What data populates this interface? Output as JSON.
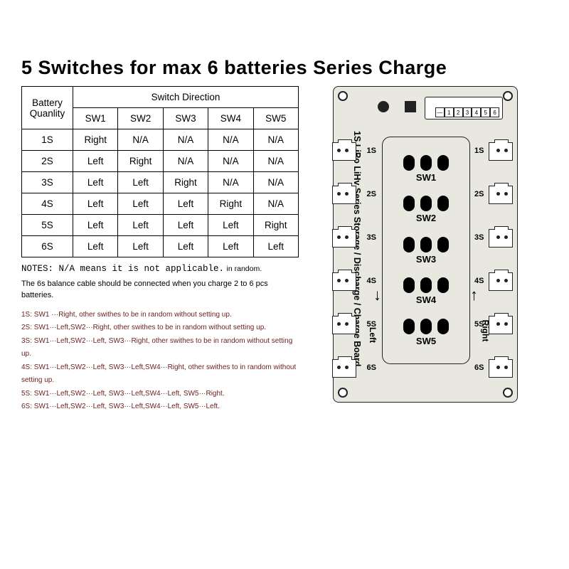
{
  "title": "5 Switches  for max 6  batteries Series Charge",
  "table": {
    "header_battery": "Battery Quanlity",
    "header_direction": "Switch Direction",
    "columns": [
      "SW1",
      "SW2",
      "SW3",
      "SW4",
      "SW5"
    ],
    "rows": [
      {
        "qty": "1S",
        "cells": [
          "Right",
          "N/A",
          "N/A",
          "N/A",
          "N/A"
        ]
      },
      {
        "qty": "2S",
        "cells": [
          "Left",
          "Right",
          "N/A",
          "N/A",
          "N/A"
        ]
      },
      {
        "qty": "3S",
        "cells": [
          "Left",
          "Left",
          "Right",
          "N/A",
          "N/A"
        ]
      },
      {
        "qty": "4S",
        "cells": [
          "Left",
          "Left",
          "Left",
          "Right",
          "N/A"
        ]
      },
      {
        "qty": "5S",
        "cells": [
          "Left",
          "Left",
          "Left",
          "Left",
          "Right"
        ]
      },
      {
        "qty": "6S",
        "cells": [
          "Left",
          "Left",
          "Left",
          "Left",
          "Left"
        ]
      }
    ]
  },
  "notes": {
    "line1a": "NOTES: N/A means  it is not applicable.",
    "line1b": "in random.",
    "line2": "The 6s balance cable should be connected when you charge 2 to 6 pcs batteries."
  },
  "rules": [
    "1S:  SW1 ···Right, other swithes to be in random without setting up.",
    "2S:  SW1···Left,SW2···Right,  other swithes to be in random without setting up.",
    "3S:  SW1···Left,SW2···Left, SW3···Right, other swithes to be in random without setting up.",
    "4S:  SW1···Left,SW2···Left, SW3···Left,SW4···Right, other swithes to in random without setting up.",
    "5S:  SW1···Left,SW2···Left, SW3···Left,SW4···Left, SW5···Right.",
    "6S:  SW1···Left,SW2···Left, SW3···Left,SW4···Left, SW5···Left."
  ],
  "pcb": {
    "vtext": "1S LiPo LiHv  Series Storage / Discharge / Charge Board",
    "balance_pins": [
      "6",
      "5",
      "4",
      "3",
      "2",
      "1",
      "—"
    ],
    "switches": [
      "SW1",
      "SW2",
      "SW3",
      "SW4",
      "SW5"
    ],
    "left_label": "Left",
    "right_label": "Right",
    "left_ports": [
      "1S",
      "2S",
      "3S",
      "4S",
      "5S",
      "6S"
    ],
    "right_ports": [
      "1S",
      "2S",
      "3S",
      "4S",
      "5S",
      "6S"
    ],
    "colors": {
      "board_bg": "#e8e8e0",
      "border": "#222222",
      "pad": "#000000",
      "rules_color": "#6b1e1e"
    }
  }
}
